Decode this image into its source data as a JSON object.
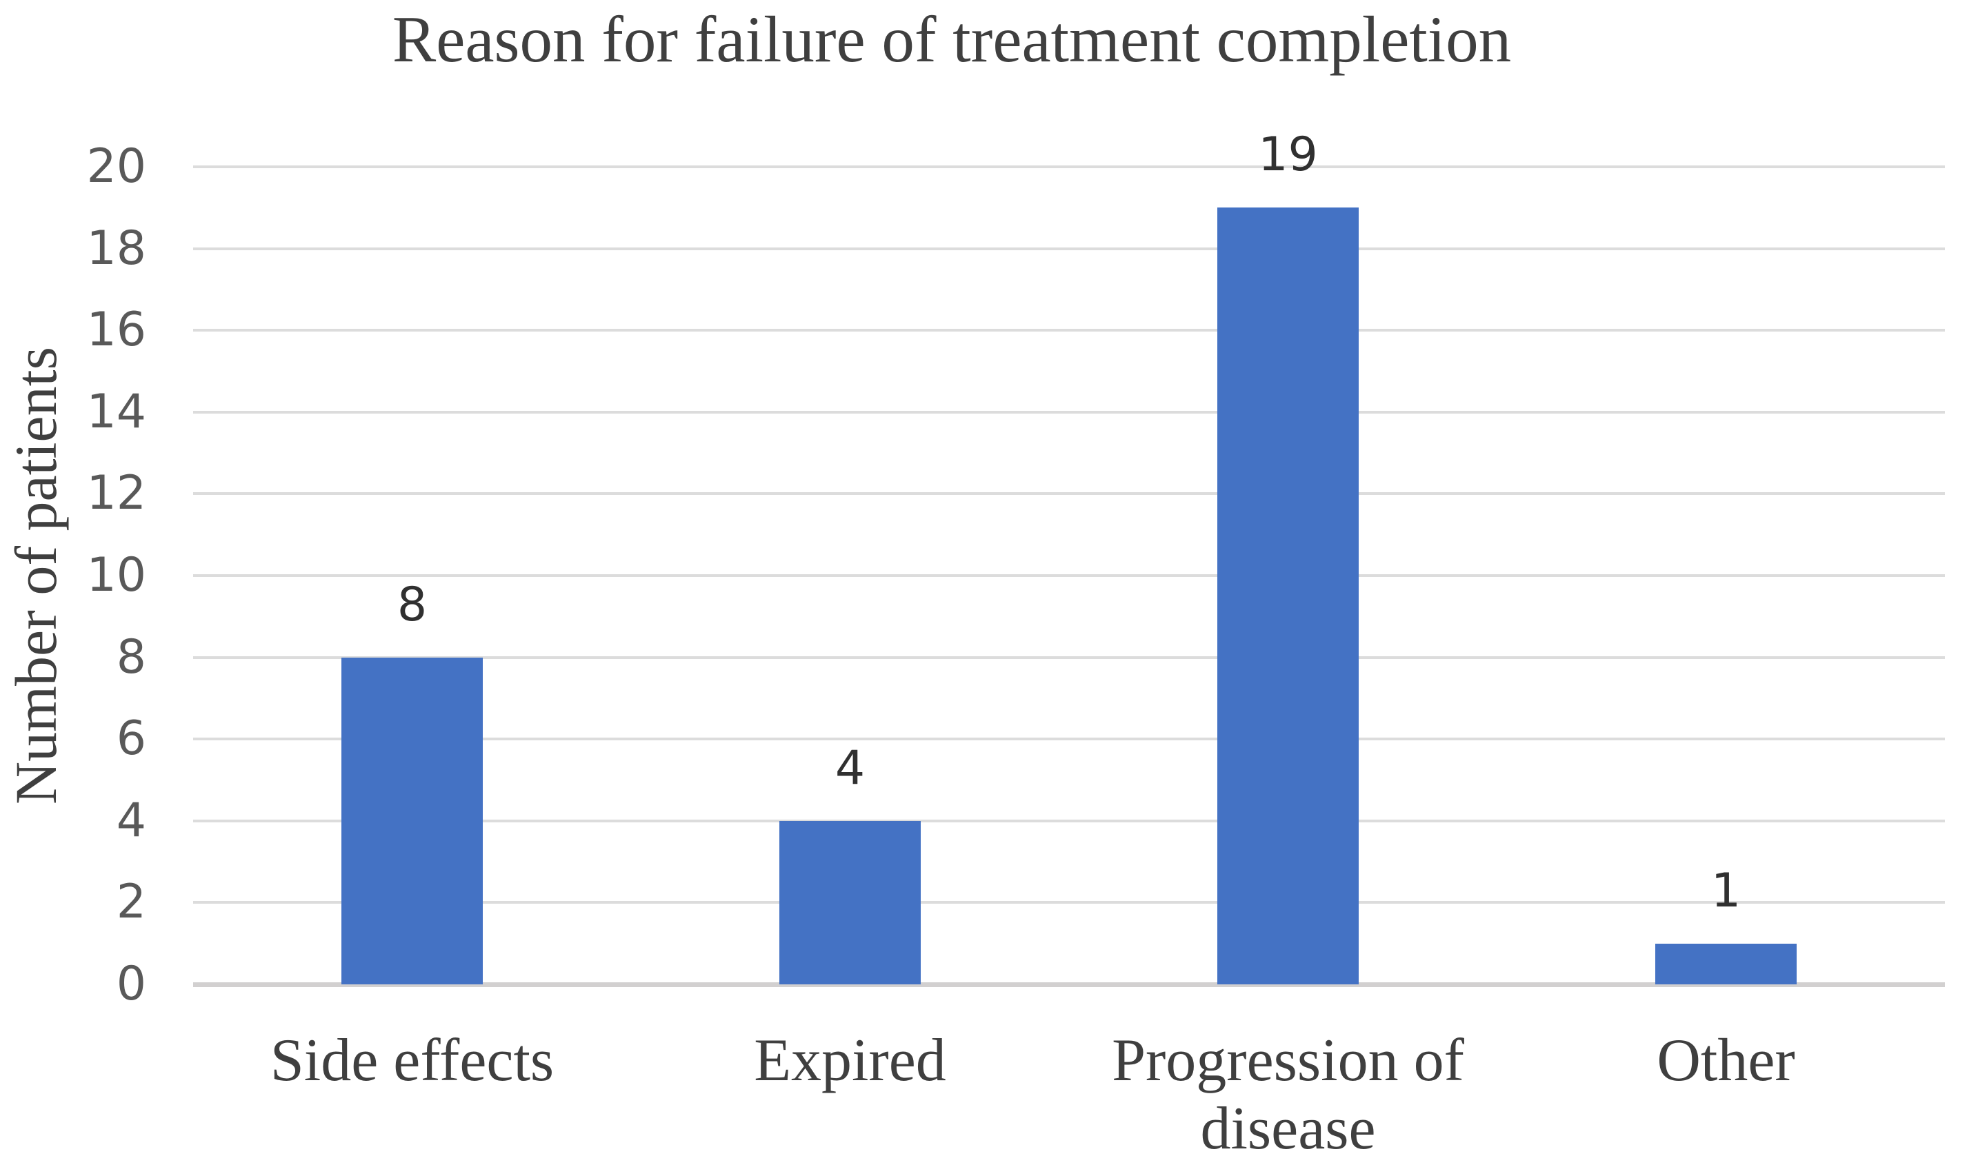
{
  "chart_data": {
    "type": "bar",
    "title": "Reason for failure of treatment completion",
    "xlabel": "",
    "ylabel": "Number of patients",
    "categories": [
      "Side effects",
      "Expired",
      "Progression of disease",
      "Other"
    ],
    "values": [
      8,
      4,
      19,
      1
    ],
    "data_labels": [
      "8",
      "4",
      "19",
      "1"
    ],
    "y_ticks": [
      0,
      2,
      4,
      6,
      8,
      10,
      12,
      14,
      16,
      18,
      20
    ],
    "ylim": [
      0,
      20
    ],
    "grid": true,
    "legend_position": "none",
    "colors": {
      "bar": "#4472c4",
      "gridline": "#dcdcdc",
      "axis_line": "#d2d0d0",
      "title_text": "#3f3f3f",
      "tick_text": "#595959",
      "category_text": "#3f3f3f",
      "data_label_text": "#303030",
      "background": "#ffffff"
    }
  }
}
